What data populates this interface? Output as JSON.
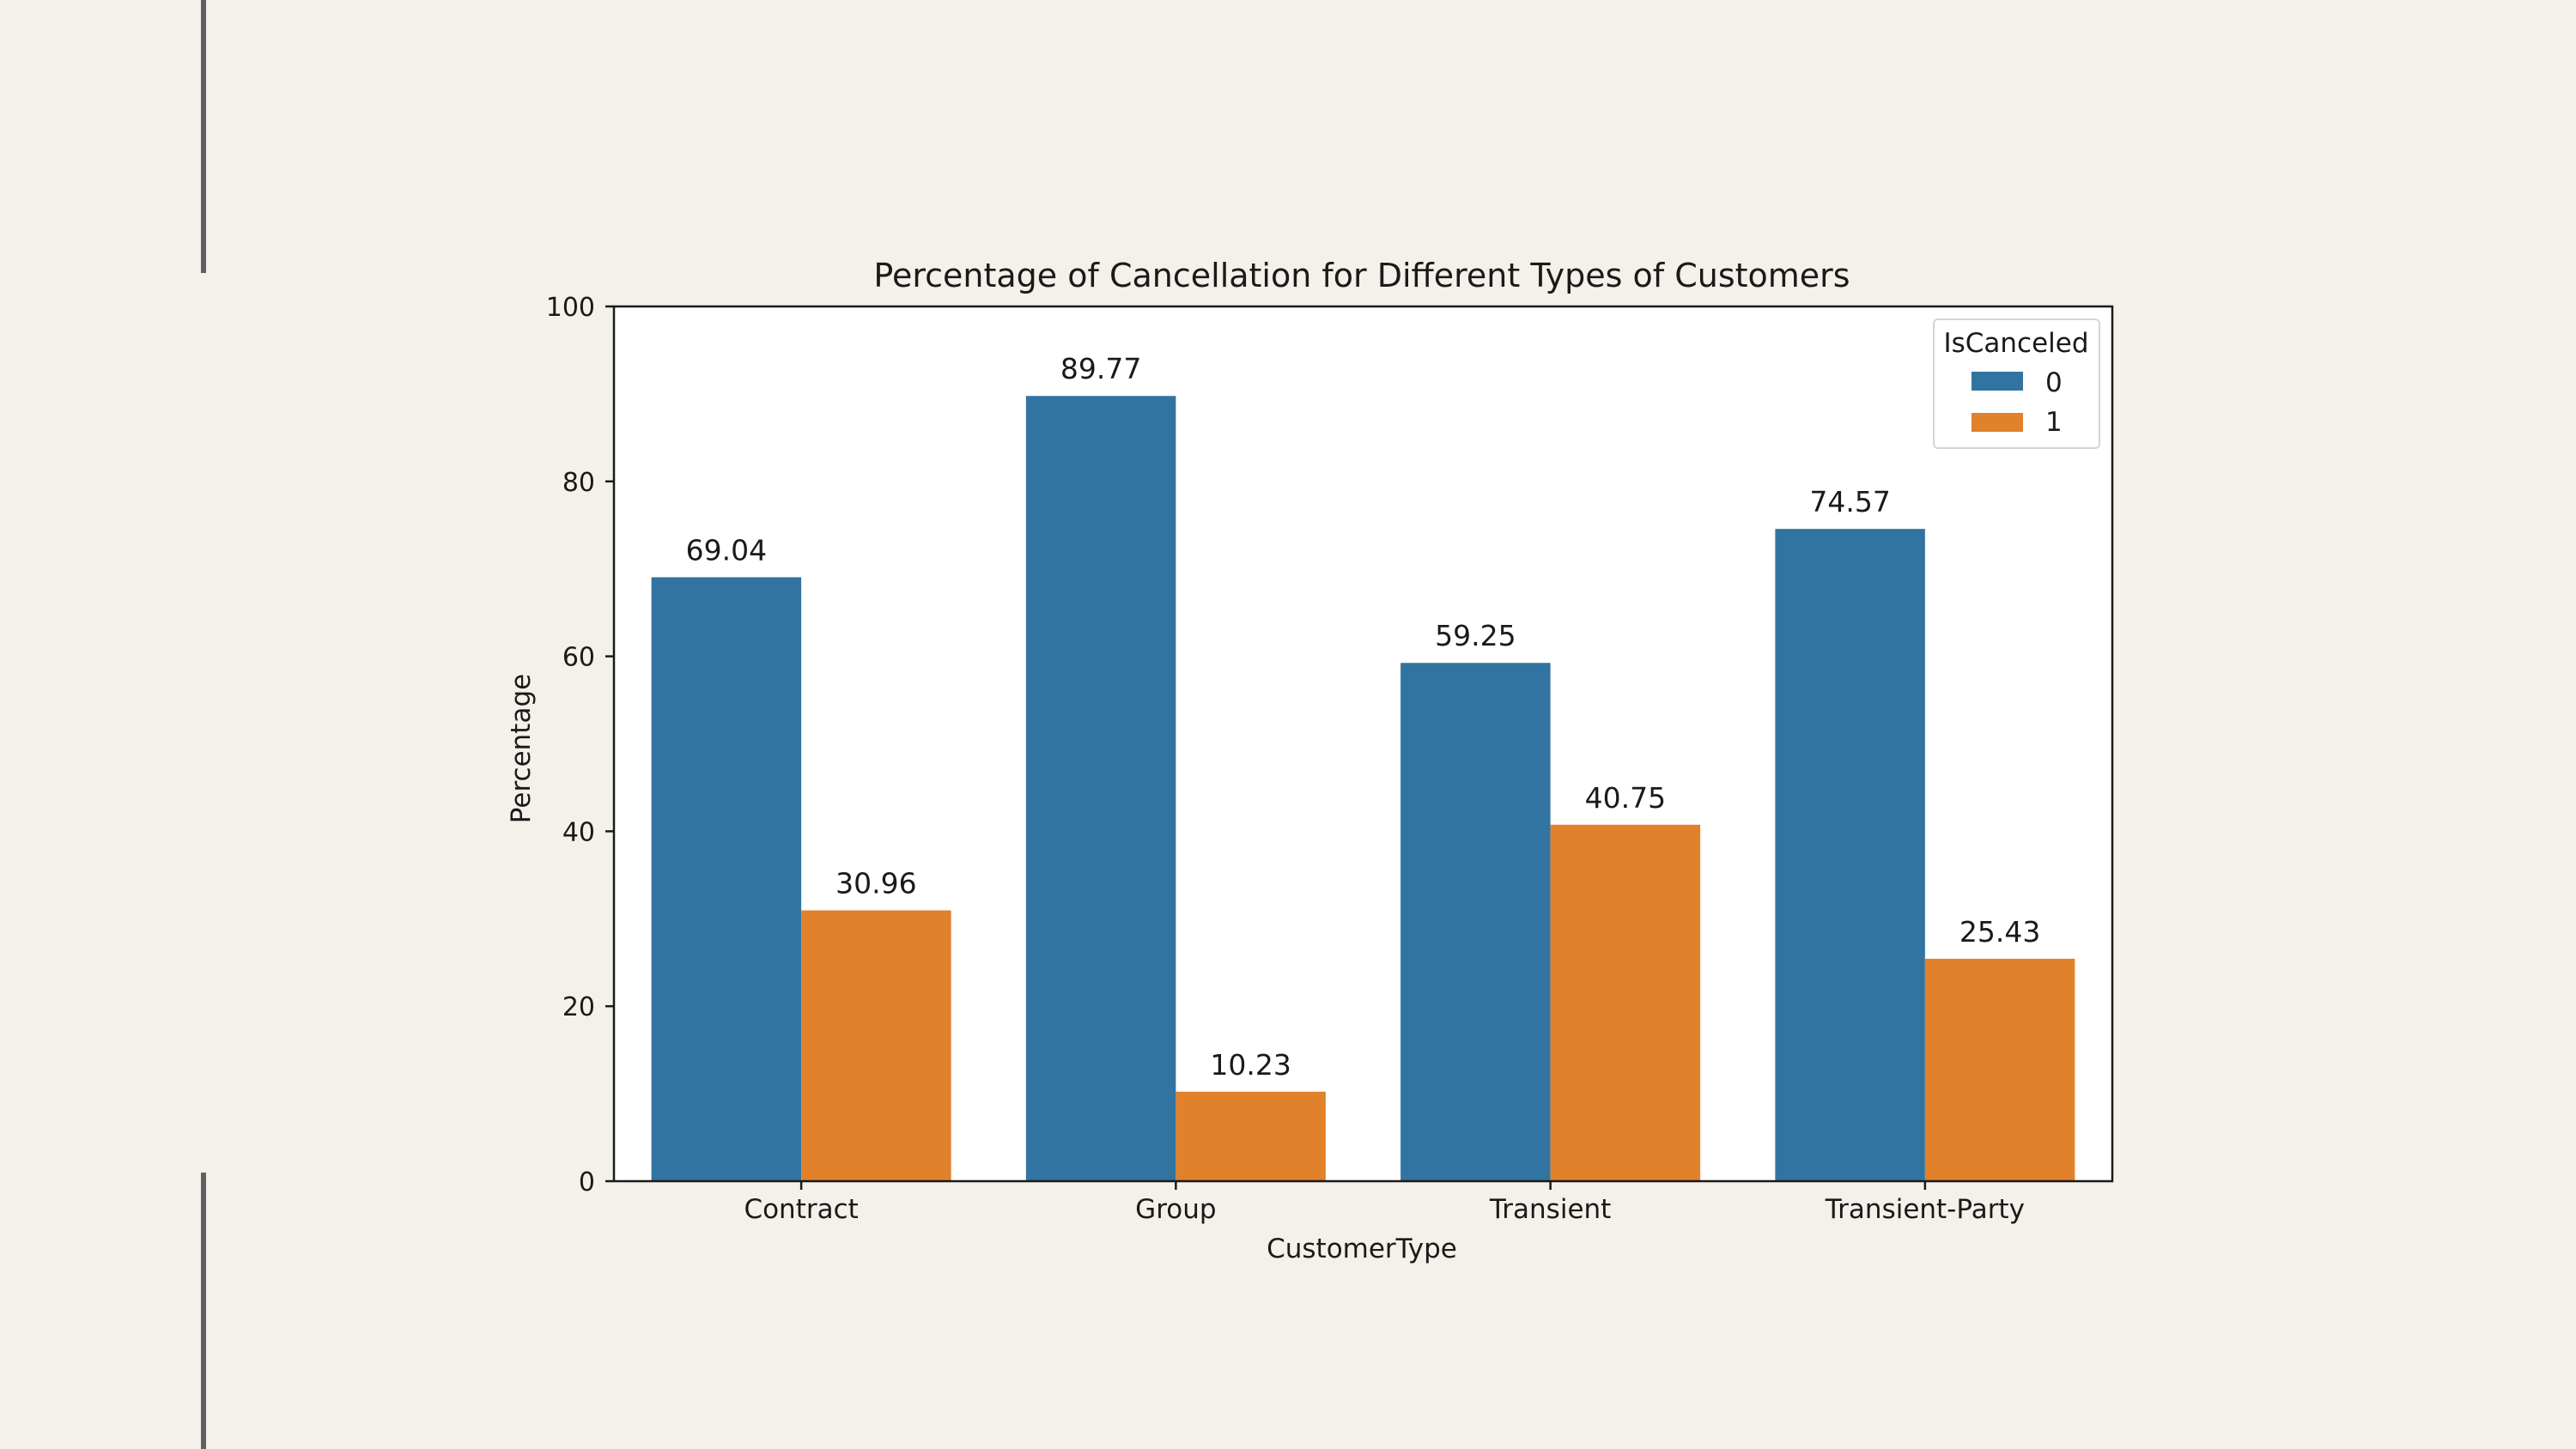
{
  "slide": {
    "accent_line_color": "#5f5f5f",
    "background": "#f4f0ea"
  },
  "chart_data": {
    "type": "bar",
    "title": "Percentage of Cancellation for Different Types of Customers",
    "xlabel": "CustomerType",
    "ylabel": "Percentage",
    "categories": [
      "Contract",
      "Group",
      "Transient",
      "Transient-Party"
    ],
    "series": [
      {
        "name": "0",
        "color": "#3274a1",
        "values": [
          69.04,
          89.77,
          59.25,
          74.57
        ]
      },
      {
        "name": "1",
        "color": "#e1812c",
        "values": [
          30.96,
          10.23,
          40.75,
          25.43
        ]
      }
    ],
    "data_labels": [
      [
        "69.04",
        "89.77",
        "59.25",
        "74.57"
      ],
      [
        "30.96",
        "10.23",
        "40.75",
        "25.43"
      ]
    ],
    "ylim": [
      0,
      100
    ],
    "yticks": [
      "0",
      "20",
      "40",
      "60",
      "80",
      "100"
    ],
    "legend": {
      "title": "IsCanceled",
      "placement": "top-right"
    },
    "grid": false
  }
}
